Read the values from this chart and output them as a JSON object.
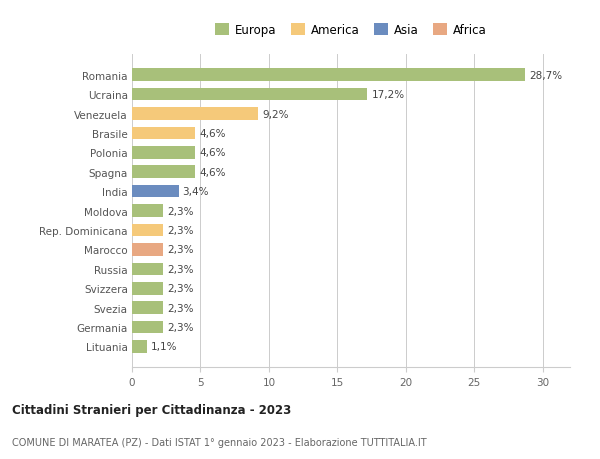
{
  "categories": [
    "Romania",
    "Ucraina",
    "Venezuela",
    "Brasile",
    "Polonia",
    "Spagna",
    "India",
    "Moldova",
    "Rep. Dominicana",
    "Marocco",
    "Russia",
    "Svizzera",
    "Svezia",
    "Germania",
    "Lituania"
  ],
  "values": [
    28.7,
    17.2,
    9.2,
    4.6,
    4.6,
    4.6,
    3.4,
    2.3,
    2.3,
    2.3,
    2.3,
    2.3,
    2.3,
    2.3,
    1.1
  ],
  "labels": [
    "28,7%",
    "17,2%",
    "9,2%",
    "4,6%",
    "4,6%",
    "4,6%",
    "3,4%",
    "2,3%",
    "2,3%",
    "2,3%",
    "2,3%",
    "2,3%",
    "2,3%",
    "2,3%",
    "1,1%"
  ],
  "colors": [
    "#a8c07a",
    "#a8c07a",
    "#f5c97a",
    "#f5c97a",
    "#a8c07a",
    "#a8c07a",
    "#6b8cbf",
    "#a8c07a",
    "#f5c97a",
    "#e8a882",
    "#a8c07a",
    "#a8c07a",
    "#a8c07a",
    "#a8c07a",
    "#a8c07a"
  ],
  "legend": [
    {
      "label": "Europa",
      "color": "#a8c07a"
    },
    {
      "label": "America",
      "color": "#f5c97a"
    },
    {
      "label": "Asia",
      "color": "#6b8cbf"
    },
    {
      "label": "Africa",
      "color": "#e8a882"
    }
  ],
  "xlim": [
    0,
    32
  ],
  "xticks": [
    0,
    5,
    10,
    15,
    20,
    25,
    30
  ],
  "title": "Cittadini Stranieri per Cittadinanza - 2023",
  "subtitle": "COMUNE DI MARATEA (PZ) - Dati ISTAT 1° gennaio 2023 - Elaborazione TUTTITALIA.IT",
  "background_color": "#ffffff",
  "grid_color": "#cccccc"
}
